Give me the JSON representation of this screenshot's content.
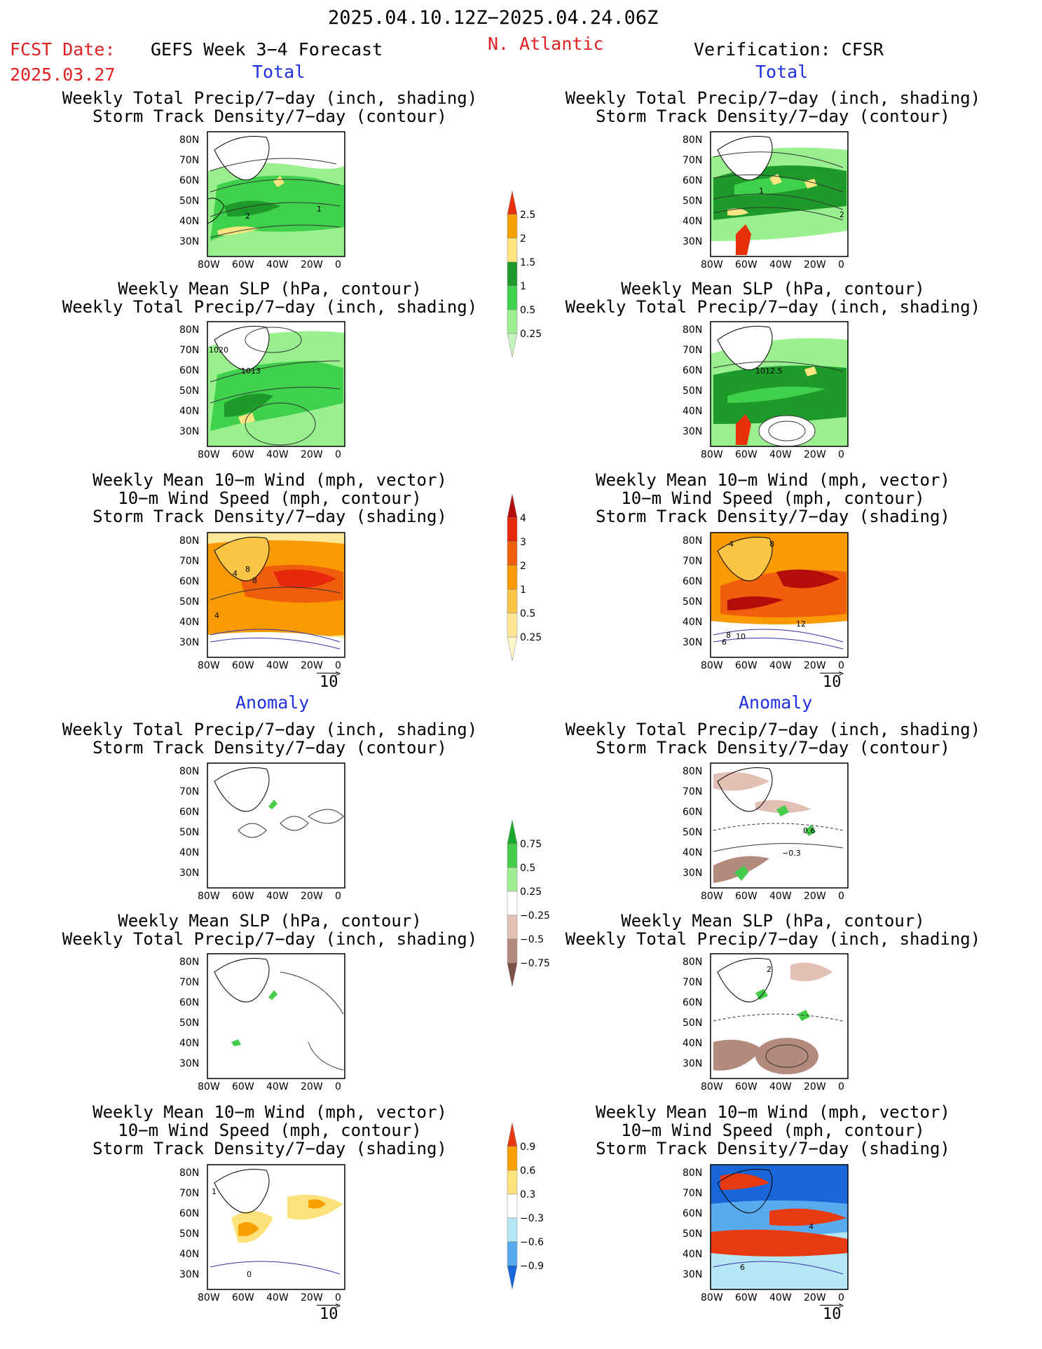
{
  "header": {
    "date_range": "2025.04.10.12Z−2025.04.24.06Z",
    "fcst_label": "FCST Date:",
    "fcst_date": "2025.03.27",
    "model": "GEFS Week 3−4 Forecast",
    "region": "N. Atlantic",
    "verification": "Verification: CFSR"
  },
  "section_labels": {
    "total": "Total",
    "anomaly": "Anomaly"
  },
  "titles": {
    "precip_storm": [
      "Weekly Total Precip/7−day (inch, shading)",
      "Storm Track Density/7−day (contour)"
    ],
    "slp_precip": [
      "Weekly Mean SLP (hPa, contour)",
      "Weekly Total Precip/7−day (inch, shading)"
    ],
    "wind_storm": [
      "Weekly Mean 10−m Wind (mph, vector)",
      "10−m Wind Speed (mph, contour)",
      "Storm Track Density/7−day (shading)"
    ]
  },
  "axes": {
    "lat_labels": [
      "80N",
      "70N",
      "60N",
      "50N",
      "40N",
      "30N"
    ],
    "lon_labels": [
      "80W",
      "60W",
      "40W",
      "20W",
      "0"
    ]
  },
  "vector_ref": "10",
  "contour_labels": {
    "f_total_precip": [
      "2",
      "1"
    ],
    "f_total_slp": [
      "1020",
      "1013"
    ],
    "f_total_wind": [
      "8",
      "4",
      "8",
      "4"
    ],
    "v_total_precip": [
      "1",
      "2"
    ],
    "v_total_slp": [
      "1012.5"
    ],
    "v_total_wind": [
      "4",
      "8",
      "12",
      "8",
      "10",
      "6"
    ],
    "v_anom_precip": [
      "0.6",
      "−0.3"
    ],
    "v_anom_slp": [
      "2"
    ],
    "f_anom_wind": [
      "1",
      "0"
    ],
    "v_anom_wind": [
      "4",
      "6"
    ]
  },
  "colorbars": {
    "precip_total": {
      "labels": [
        "2.5",
        "2",
        "1.5",
        "1",
        "0.5",
        "0.25"
      ],
      "colors": [
        "#e8300a",
        "#f8a200",
        "#fde680",
        "#1e9a2a",
        "#3fd04c",
        "#9af08f",
        "#c6f5be"
      ]
    },
    "storm_total": {
      "labels": [
        "4",
        "3",
        "2",
        "1",
        "0.5",
        "0.25"
      ],
      "colors": [
        "#b40b0b",
        "#e8280d",
        "#f05d0c",
        "#f89a00",
        "#fbc545",
        "#fee796",
        "#fff5c6"
      ]
    },
    "precip_anom": {
      "labels": [
        "0.75",
        "0.5",
        "0.25",
        "−0.25",
        "−0.5",
        "−0.75"
      ],
      "colors": [
        "#18a62b",
        "#45cc4a",
        "#a0ec93",
        "#ffffff",
        "#e3c0b4",
        "#b48a7d",
        "#7c5148"
      ]
    },
    "storm_anom": {
      "labels": [
        "0.9",
        "0.6",
        "0.3",
        "−0.3",
        "−0.6",
        "−0.9"
      ],
      "colors": [
        "#e83a10",
        "#f8a000",
        "#fde27c",
        "#ffffff",
        "#b4e6f6",
        "#5aaaf0",
        "#1866d8"
      ]
    }
  }
}
